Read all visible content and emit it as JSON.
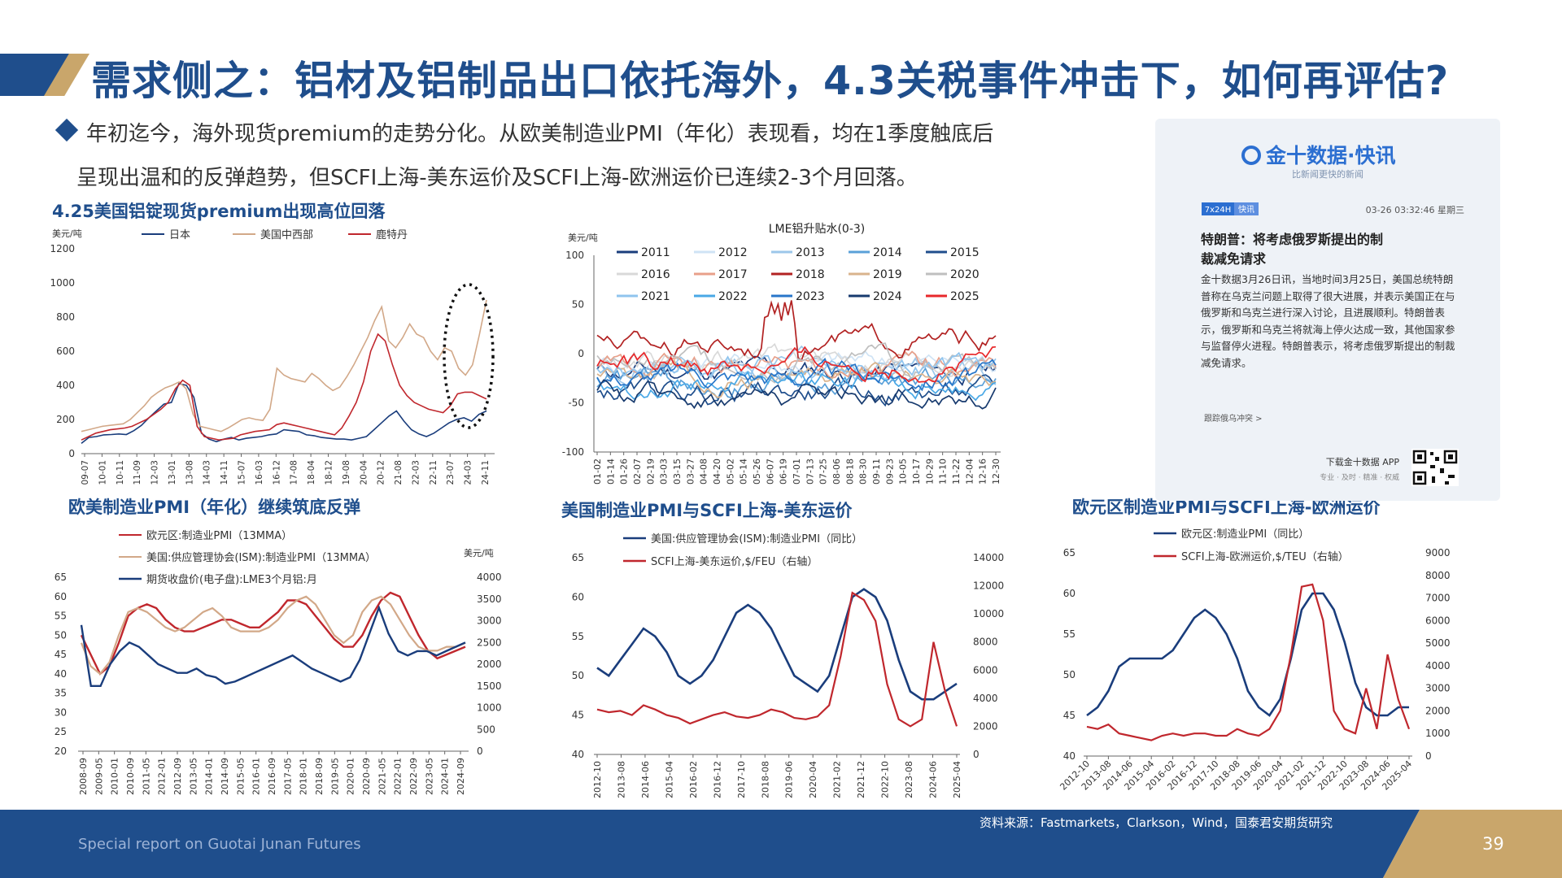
{
  "header": {
    "title": "需求侧之：铝材及铝制品出口依托海外，4.3关税事件冲击下，如何再评估?"
  },
  "bullets": {
    "line1": "年初迄今，海外现货premium的走势分化。从欧美制造业PMI（年化）表现看，均在1季度触底后",
    "line2": "呈现出温和的反弹趋势，但SCFI上海-美东运价及SCFI上海-欧洲运价已连续2-3个月回落。"
  },
  "colors": {
    "brand_blue": "#1f4e8c",
    "gold": "#c9a66b",
    "navy": "#1a3d7c",
    "tan": "#d2a888",
    "red": "#c0272d"
  },
  "news": {
    "brand": "金十数据·快讯",
    "slogan": "比新闻更快的新闻",
    "badge": "7x24H",
    "badge2": "快讯",
    "timestamp": "03-26 03:32:46 星期三",
    "headline": "特朗普：将考虑俄罗斯提出的制裁减免请求",
    "body": "金十数据3月26日讯，当地时间3月25日，美国总统特朗普称在乌克兰问题上取得了很大进展，并表示美国正在与俄罗斯和乌克兰进行深入讨论，且进展顺利。特朗普表示，俄罗斯和乌克兰将就海上停火达成一致，其他国家参与监督停火进程。特朗普表示，将考虑俄罗斯提出的制裁减免请求。",
    "follow": "跟踪俄乌冲突 >",
    "download": "下载金十数据 APP",
    "tagline": "专业 · 及时 · 精准 · 权威",
    "qr_icon": "qr-code-icon"
  },
  "footer": {
    "report": "Special report on Guotai Junan Futures",
    "page": "39",
    "source": "资料来源：Fastmarkets，Clarkson，Wind，国泰君安期货研究"
  },
  "chart_data": [
    {
      "type": "line",
      "title": "4.25美国铝锭现货premium出现高位回落",
      "ylabel": "美元/吨",
      "ylim": [
        0,
        1200
      ],
      "yticks": [
        "0",
        "200",
        "400",
        "600",
        "800",
        "1000",
        "1200"
      ],
      "xticks": [
        "09-07",
        "10-01",
        "10-11",
        "11-09",
        "12-03",
        "13-01",
        "13-08",
        "14-03",
        "14-11",
        "15-07",
        "16-03",
        "16-12",
        "17-08",
        "18-04",
        "18-12",
        "19-08",
        "20-04",
        "20-12",
        "21-08",
        "22-03",
        "22-11",
        "23-07",
        "24-03",
        "24-11"
      ],
      "series": [
        {
          "name": "日本",
          "color": "#1a3d7c",
          "values": [
            60,
            95,
            100,
            110,
            112,
            115,
            112,
            135,
            165,
            210,
            250,
            290,
            300,
            410,
            400,
            330,
            120,
            85,
            70,
            85,
            95,
            80,
            90,
            95,
            100,
            110,
            115,
            140,
            135,
            130,
            110,
            105,
            95,
            90,
            85,
            85,
            80,
            90,
            100,
            140,
            180,
            220,
            250,
            190,
            140,
            115,
            100,
            120,
            150,
            180,
            200,
            210,
            190,
            230,
            250
          ]
        },
        {
          "name": "美国中西部",
          "color": "#d2a888",
          "values": [
            130,
            140,
            150,
            160,
            165,
            170,
            175,
            200,
            240,
            280,
            330,
            360,
            385,
            400,
            420,
            380,
            230,
            160,
            150,
            140,
            130,
            150,
            175,
            200,
            210,
            200,
            195,
            260,
            500,
            460,
            440,
            430,
            420,
            470,
            440,
            400,
            370,
            390,
            450,
            520,
            600,
            680,
            780,
            860,
            660,
            620,
            680,
            760,
            700,
            680,
            600,
            550,
            620,
            600,
            500,
            460,
            520,
            700,
            900
          ]
        },
        {
          "name": "鹿特丹",
          "color": "#c0272d",
          "values": [
            80,
            100,
            120,
            130,
            140,
            145,
            150,
            160,
            180,
            200,
            230,
            260,
            300,
            380,
            430,
            400,
            160,
            100,
            90,
            80,
            85,
            90,
            110,
            120,
            130,
            135,
            140,
            170,
            180,
            170,
            160,
            150,
            140,
            130,
            120,
            110,
            150,
            220,
            300,
            420,
            600,
            700,
            660,
            520,
            400,
            340,
            300,
            280,
            260,
            250,
            240,
            280,
            350,
            360,
            360,
            340,
            320
          ]
        }
      ],
      "annotation": "dashed-ellipse"
    },
    {
      "type": "line",
      "title": "LME铝升贴水(0-3)",
      "ylabel": "美元/吨",
      "ylim": [
        -100,
        100
      ],
      "yticks": [
        "-100",
        "-50",
        "0",
        "50",
        "100"
      ],
      "xticks": [
        "01-02",
        "01-14",
        "01-26",
        "02-07",
        "02-19",
        "03-03",
        "03-15",
        "03-27",
        "04-08",
        "04-20",
        "05-02",
        "05-14",
        "05-26",
        "06-07",
        "06-19",
        "07-01",
        "07-13",
        "07-25",
        "08-06",
        "08-18",
        "08-30",
        "09-11",
        "09-23",
        "10-05",
        "10-17",
        "10-29",
        "11-10",
        "11-22",
        "12-04",
        "12-16",
        "12-30"
      ],
      "series": [
        {
          "name": "2011",
          "color": "#1a3d7c"
        },
        {
          "name": "2012",
          "color": "#cfe3f5"
        },
        {
          "name": "2013",
          "color": "#9cc7ea"
        },
        {
          "name": "2014",
          "color": "#5aa0d8"
        },
        {
          "name": "2015",
          "color": "#1f4e8c"
        },
        {
          "name": "2016",
          "color": "#d9d9d9"
        },
        {
          "name": "2017",
          "color": "#e8a08a"
        },
        {
          "name": "2018",
          "color": "#b22222"
        },
        {
          "name": "2019",
          "color": "#d9b38c"
        },
        {
          "name": "2020",
          "color": "#bfbfbf"
        },
        {
          "name": "2021",
          "color": "#8fc4ee"
        },
        {
          "name": "2022",
          "color": "#49a8e6"
        },
        {
          "name": "2023",
          "color": "#2876c9"
        },
        {
          "name": "2024",
          "color": "#173a6e"
        },
        {
          "name": "2025",
          "color": "#e8282b"
        }
      ]
    },
    {
      "type": "line",
      "title": "欧美制造业PMI（年化）继续筑底反弹",
      "ylabel_right": "美元/吨",
      "ylim_left": [
        20,
        65
      ],
      "ylim_right": [
        0,
        4000
      ],
      "yticks_left": [
        "20",
        "25",
        "30",
        "35",
        "40",
        "45",
        "50",
        "55",
        "60",
        "65"
      ],
      "yticks_right": [
        "0",
        "500",
        "1000",
        "1500",
        "2000",
        "2500",
        "3000",
        "3500",
        "4000"
      ],
      "xticks": [
        "2008-09",
        "2009-05",
        "2010-01",
        "2010-09",
        "2011-05",
        "2012-01",
        "2012-09",
        "2013-05",
        "2014-01",
        "2014-09",
        "2015-05",
        "2016-01",
        "2016-09",
        "2017-05",
        "2018-01",
        "2018-09",
        "2019-05",
        "2020-01",
        "2020-09",
        "2021-05",
        "2022-01",
        "2022-09",
        "2023-05",
        "2024-01",
        "2024-09"
      ],
      "series": [
        {
          "name": "欧元区:制造业PMI（13MMA）",
          "color": "#c0272d",
          "values": [
            50,
            45,
            40,
            42,
            48,
            55,
            57,
            58,
            57,
            54,
            52,
            51,
            51,
            52,
            53,
            54,
            54,
            53,
            52,
            52,
            54,
            56,
            59,
            59,
            58,
            55,
            52,
            49,
            47,
            47,
            50,
            55,
            59,
            61,
            60,
            55,
            50,
            46,
            44,
            45,
            46,
            47
          ]
        },
        {
          "name": "美国:供应管理协会(ISM):制造业PMI（13MMA）",
          "color": "#d2a888",
          "values": [
            48,
            42,
            40,
            43,
            50,
            56,
            57,
            56,
            54,
            52,
            51,
            52,
            54,
            56,
            57,
            55,
            52,
            51,
            51,
            51,
            52,
            54,
            57,
            59,
            60,
            58,
            54,
            50,
            48,
            50,
            56,
            59,
            60,
            58,
            54,
            50,
            47,
            46,
            46,
            47,
            47,
            48
          ]
        },
        {
          "name": "期货收盘价(电子盘):LME3个月铝:月",
          "color": "#1a3d7c",
          "values": [
            2900,
            1500,
            1500,
            2000,
            2300,
            2500,
            2400,
            2200,
            2000,
            1900,
            1800,
            1800,
            1900,
            1750,
            1700,
            1550,
            1600,
            1700,
            1800,
            1900,
            2000,
            2100,
            2200,
            2050,
            1900,
            1800,
            1700,
            1600,
            1700,
            2100,
            2700,
            3300,
            2700,
            2300,
            2200,
            2300,
            2300,
            2200,
            2300,
            2400,
            2500
          ]
        }
      ]
    },
    {
      "type": "line",
      "title": "美国制造业PMI与SCFI上海-美东运价",
      "ylim_left": [
        40,
        65
      ],
      "ylim_right": [
        0,
        14000
      ],
      "yticks_left": [
        "40",
        "45",
        "50",
        "55",
        "60",
        "65"
      ],
      "yticks_right": [
        "0",
        "2000",
        "4000",
        "6000",
        "8000",
        "10000",
        "12000",
        "14000"
      ],
      "xticks": [
        "2012-10",
        "2013-08",
        "2014-06",
        "2015-04",
        "2016-02",
        "2016-12",
        "2017-10",
        "2018-08",
        "2019-06",
        "2020-04",
        "2021-02",
        "2021-12",
        "2022-10",
        "2023-08",
        "2024-06",
        "2025-04"
      ],
      "series": [
        {
          "name": "美国:供应管理协会(ISM):制造业PMI（同比）",
          "color": "#1a3d7c",
          "values": [
            51,
            50,
            52,
            54,
            56,
            55,
            53,
            50,
            49,
            50,
            52,
            55,
            58,
            59,
            58,
            56,
            53,
            50,
            49,
            48,
            50,
            55,
            60,
            61,
            60,
            57,
            52,
            48,
            47,
            47,
            48,
            49
          ]
        },
        {
          "name": "SCFI上海-美东运价,$/FEU（右轴）",
          "color": "#c0272d",
          "values": [
            3200,
            3000,
            3100,
            2800,
            3500,
            3200,
            2800,
            2600,
            2200,
            2500,
            2800,
            3000,
            2700,
            2600,
            2800,
            3200,
            3000,
            2600,
            2500,
            2700,
            3500,
            7000,
            11500,
            11000,
            9500,
            5000,
            2500,
            2000,
            2500,
            8000,
            4500,
            2000
          ]
        }
      ]
    },
    {
      "type": "line",
      "title": "欧元区制造业PMI与SCFI上海-欧洲运价",
      "ylim_left": [
        40,
        65
      ],
      "ylim_right": [
        0,
        9000
      ],
      "yticks_left": [
        "40",
        "45",
        "50",
        "55",
        "60",
        "65"
      ],
      "yticks_right": [
        "0",
        "1000",
        "2000",
        "3000",
        "4000",
        "5000",
        "6000",
        "7000",
        "8000",
        "9000"
      ],
      "xticks": [
        "2012-10",
        "2013-08",
        "2014-06",
        "2015-04",
        "2016-02",
        "2016-12",
        "2017-10",
        "2018-08",
        "2019-06",
        "2020-04",
        "2021-02",
        "2021-12",
        "2022-10",
        "2023-08",
        "2024-06",
        "2025-04"
      ],
      "series": [
        {
          "name": "欧元区:制造业PMI（同比）",
          "color": "#1a3d7c",
          "values": [
            45,
            46,
            48,
            51,
            52,
            52,
            52,
            52,
            53,
            55,
            57,
            58,
            57,
            55,
            52,
            48,
            46,
            45,
            47,
            52,
            58,
            60,
            60,
            58,
            54,
            49,
            46,
            45,
            45,
            46,
            46
          ]
        },
        {
          "name": "SCFI上海-欧洲运价,$/TEU（右轴）",
          "color": "#c0272d",
          "values": [
            1300,
            1200,
            1400,
            1000,
            900,
            800,
            700,
            900,
            1000,
            900,
            1000,
            1000,
            900,
            900,
            1200,
            1000,
            900,
            1200,
            2000,
            4500,
            7500,
            7600,
            6000,
            2000,
            1200,
            1000,
            3000,
            1200,
            4500,
            2500,
            1200
          ]
        }
      ]
    }
  ]
}
